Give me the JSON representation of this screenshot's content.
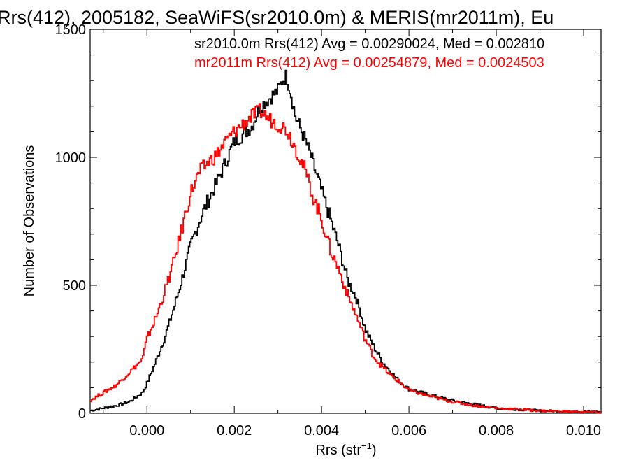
{
  "chart_data": {
    "type": "line",
    "title": "Rrs(412), 2005182, SeaWiFS(sr2010.0m) & MERIS(mr2011m), Eu",
    "xlabel": "Rrs (str",
    "xlabel_sup": "−1",
    "xlabel_close": ")",
    "ylabel": "Number of Observations",
    "xlim": [
      -0.0013,
      0.0104
    ],
    "ylim": [
      0,
      1500
    ],
    "xticks": [
      "0.000",
      "0.002",
      "0.004",
      "0.006",
      "0.008",
      "0.010"
    ],
    "yticks": [
      "0",
      "500",
      "1000",
      "1500"
    ],
    "grid": false,
    "annotations": [
      {
        "text": "sr2010.0m Rrs(412) Avg = 0.00290024, Med = 0.002810",
        "color": "#000000"
      },
      {
        "text": "mr2011m Rrs(412) Avg = 0.00254879, Med = 0.0024503",
        "color": "#ff0000"
      }
    ],
    "series": [
      {
        "name": "sr2010.0m",
        "color": "#000000",
        "x": [
          -0.0013,
          -0.001,
          -0.0007,
          -0.0004,
          -0.0001,
          0.0,
          0.0002,
          0.0004,
          0.0006,
          0.0008,
          0.001,
          0.0012,
          0.0014,
          0.0016,
          0.0018,
          0.002,
          0.0022,
          0.0024,
          0.0026,
          0.0028,
          0.003,
          0.0031,
          0.0032,
          0.0033,
          0.0034,
          0.0036,
          0.0038,
          0.004,
          0.0042,
          0.0044,
          0.0046,
          0.0048,
          0.005,
          0.0052,
          0.0054,
          0.0056,
          0.0058,
          0.006,
          0.0065,
          0.007,
          0.0075,
          0.008,
          0.0085,
          0.009,
          0.0095,
          0.01,
          0.0104
        ],
        "y": [
          10,
          20,
          30,
          45,
          80,
          115,
          200,
          290,
          400,
          520,
          650,
          750,
          830,
          900,
          980,
          1060,
          1090,
          1120,
          1200,
          1230,
          1260,
          1300,
          1320,
          1250,
          1160,
          1080,
          980,
          870,
          760,
          650,
          520,
          450,
          330,
          260,
          200,
          160,
          120,
          95,
          70,
          50,
          35,
          20,
          15,
          10,
          8,
          6,
          5
        ]
      },
      {
        "name": "mr2011m",
        "color": "#ff0000",
        "x": [
          -0.0013,
          -0.001,
          -0.0007,
          -0.0004,
          -0.0001,
          0.0,
          0.0002,
          0.0004,
          0.0006,
          0.0008,
          0.001,
          0.0012,
          0.0014,
          0.0016,
          0.0018,
          0.002,
          0.0022,
          0.0024,
          0.0026,
          0.0028,
          0.003,
          0.0032,
          0.0034,
          0.0036,
          0.0038,
          0.004,
          0.0042,
          0.0044,
          0.0046,
          0.0048,
          0.005,
          0.0052,
          0.0054,
          0.0056,
          0.0058,
          0.006,
          0.0065,
          0.007,
          0.0075,
          0.008,
          0.0085,
          0.009,
          0.0095,
          0.01,
          0.0104
        ],
        "y": [
          50,
          80,
          110,
          160,
          210,
          290,
          370,
          470,
          580,
          720,
          860,
          940,
          980,
          1010,
          1060,
          1100,
          1130,
          1160,
          1180,
          1150,
          1130,
          1110,
          1040,
          960,
          850,
          760,
          640,
          560,
          460,
          380,
          290,
          220,
          180,
          145,
          120,
          90,
          65,
          45,
          30,
          20,
          15,
          10,
          7,
          5,
          4
        ]
      }
    ]
  }
}
